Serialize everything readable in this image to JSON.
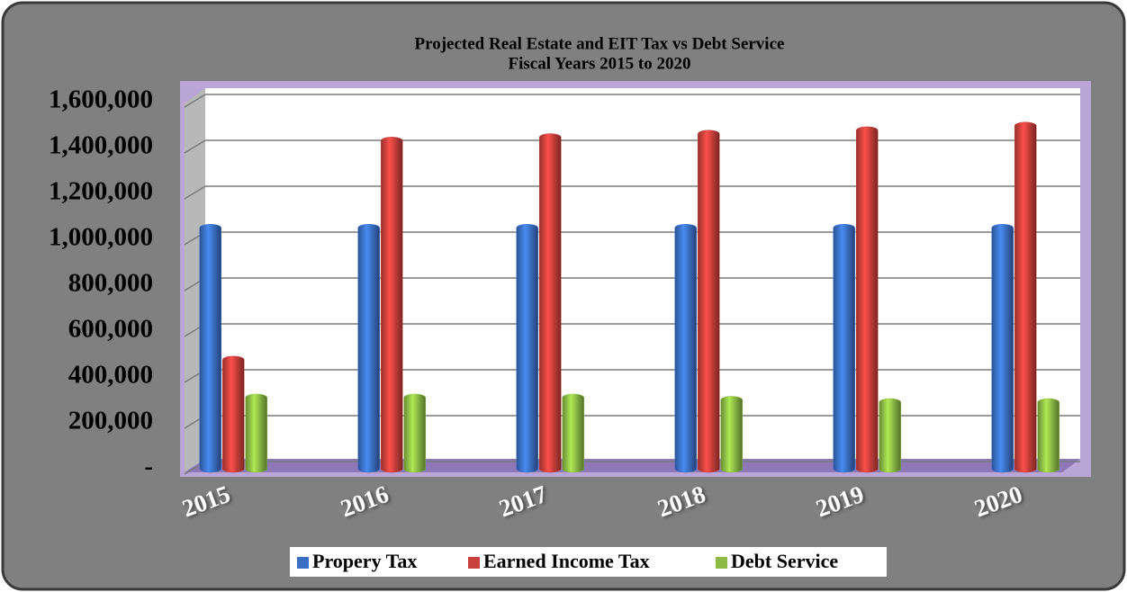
{
  "chart_data": {
    "type": "bar",
    "title": "Projected Real Estate and EIT Tax vs Debt Service",
    "subtitle": "Fiscal Years 2015 to 2020",
    "categories": [
      "2015",
      "2016",
      "2017",
      "2018",
      "2019",
      "2020"
    ],
    "series": [
      {
        "name": "Propery Tax",
        "color": "#3a6fc4",
        "values": [
          1050000,
          1050000,
          1050000,
          1050000,
          1050000,
          1050000
        ]
      },
      {
        "name": "Earned Income Tax",
        "color": "#c9403c",
        "values": [
          475000,
          1430000,
          1445000,
          1460000,
          1475000,
          1495000
        ]
      },
      {
        "name": "Debt Service",
        "color": "#8cbb45",
        "values": [
          310000,
          310000,
          310000,
          300000,
          290000,
          290000
        ]
      }
    ],
    "ylim": [
      0,
      1600000
    ],
    "yticks": [
      {
        "value": 0,
        "label": "-"
      },
      {
        "value": 200000,
        "label": "200,000"
      },
      {
        "value": 400000,
        "label": "400,000"
      },
      {
        "value": 600000,
        "label": "600,000"
      },
      {
        "value": 800000,
        "label": "800,000"
      },
      {
        "value": 1000000,
        "label": "1,000,000"
      },
      {
        "value": 1200000,
        "label": "1,200,000"
      },
      {
        "value": 1400000,
        "label": "1,400,000"
      },
      {
        "value": 1600000,
        "label": "1,600,000"
      }
    ],
    "grid": true,
    "legend": "bottom"
  }
}
